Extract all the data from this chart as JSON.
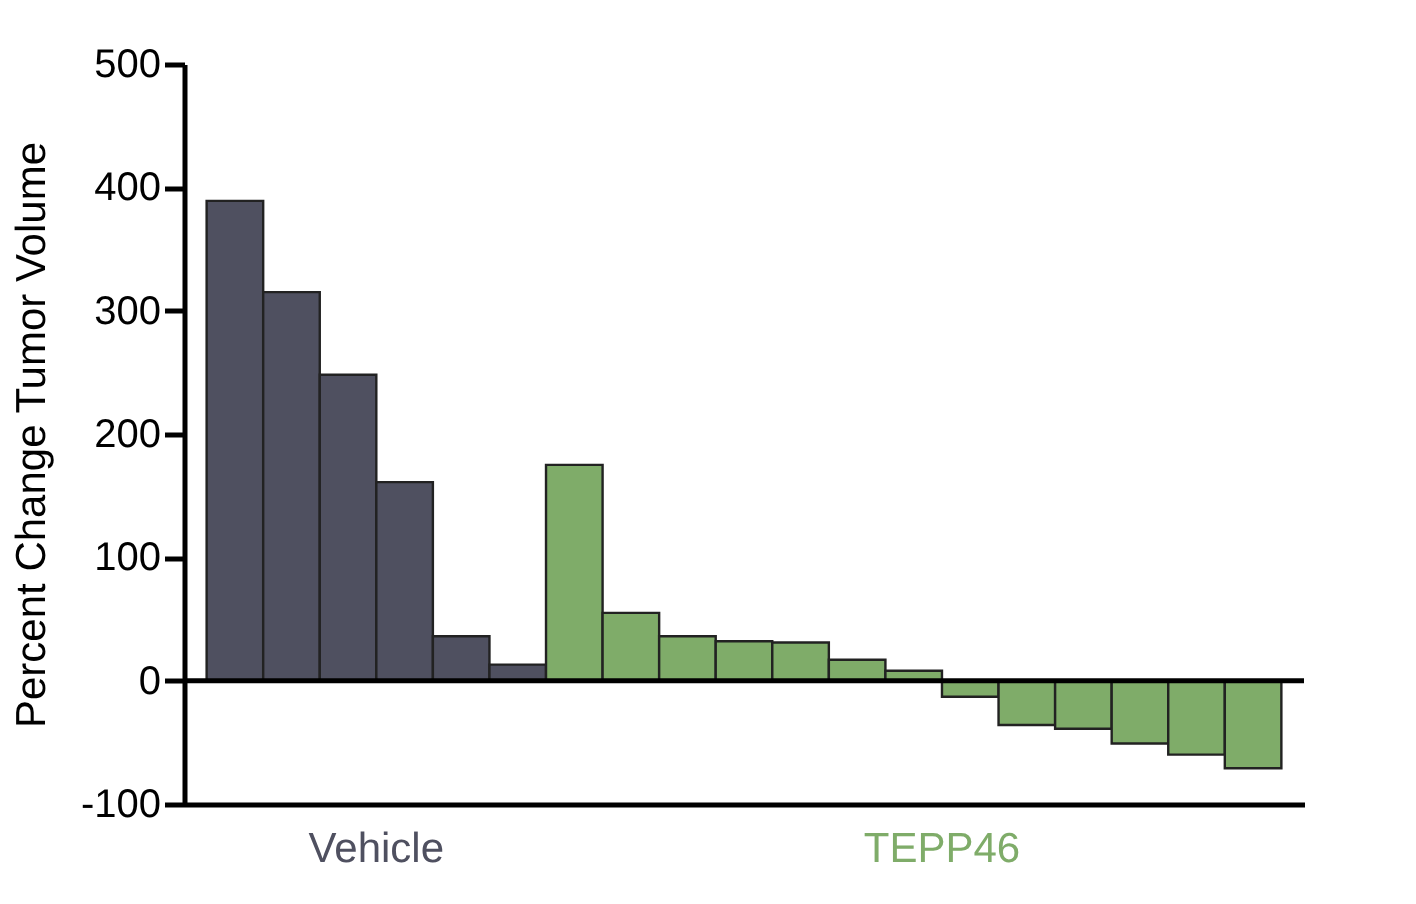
{
  "chart_data": {
    "type": "bar",
    "ylabel": "Percent Change Tumor Volume",
    "categories": [
      null,
      null,
      null,
      null,
      null,
      null,
      null,
      null,
      null,
      null,
      null,
      null,
      null,
      null,
      null,
      null,
      null,
      null,
      null
    ],
    "series": [
      {
        "name": "Vehicle",
        "color": "#4f5060",
        "values": [
          389,
          315,
          248,
          161,
          36,
          13,
          null,
          null,
          null,
          null,
          null,
          null,
          null,
          null,
          null,
          null,
          null,
          null,
          null
        ]
      },
      {
        "name": "TEPP46",
        "color": "#7fac69",
        "values": [
          null,
          null,
          null,
          null,
          null,
          null,
          175,
          55,
          36,
          32,
          31,
          17,
          8,
          -13,
          -36,
          -39,
          -51,
          -60,
          -71
        ]
      }
    ],
    "ylim": [
      -100,
      500
    ],
    "yticks": [
      -100,
      0,
      100,
      200,
      300,
      400,
      500
    ],
    "ref_lines": [
      {
        "axis": "y",
        "value": 0,
        "color": "#000000"
      }
    ],
    "grid": false,
    "legend": false
  }
}
